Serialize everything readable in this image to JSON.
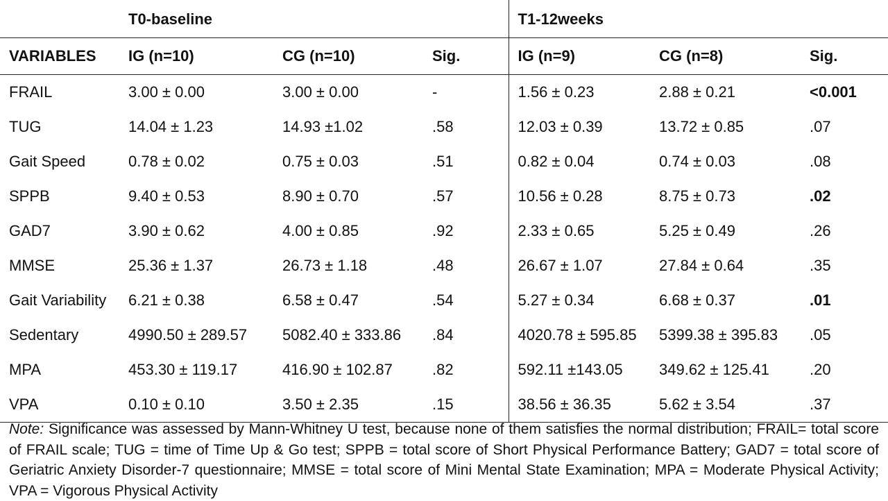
{
  "groups": {
    "t0": "T0-baseline",
    "t1": "T1-12weeks"
  },
  "headers": {
    "variables": "VARIABLES",
    "t0_ig": "IG (n=10)",
    "t0_cg": "CG (n=10)",
    "t0_sig": "Sig.",
    "t1_ig": "IG (n=9)",
    "t1_cg": "CG (n=8)",
    "t1_sig": "Sig."
  },
  "rows": [
    {
      "var": "FRAIL",
      "t0_ig": "3.00 ± 0.00",
      "t0_cg": "3.00 ± 0.00",
      "t0_sig": "-",
      "t1_ig": "1.56 ± 0.23",
      "t1_cg": "2.88 ± 0.21",
      "t1_sig": "<0.001",
      "t1_sig_bold": true
    },
    {
      "var": "TUG",
      "t0_ig": "14.04 ± 1.23",
      "t0_cg": "14.93 ±1.02",
      "t0_sig": ".58",
      "t1_ig": "12.03 ± 0.39",
      "t1_cg": "13.72 ± 0.85",
      "t1_sig": ".07",
      "t1_sig_bold": false
    },
    {
      "var": "Gait Speed",
      "t0_ig": "0.78 ± 0.02",
      "t0_cg": "0.75 ± 0.03",
      "t0_sig": ".51",
      "t1_ig": "0.82 ± 0.04",
      "t1_cg": "0.74 ± 0.03",
      "t1_sig": ".08",
      "t1_sig_bold": false
    },
    {
      "var": "SPPB",
      "t0_ig": "9.40 ± 0.53",
      "t0_cg": "8.90 ± 0.70",
      "t0_sig": ".57",
      "t1_ig": "10.56 ± 0.28",
      "t1_cg": "8.75 ± 0.73",
      "t1_sig": ".02",
      "t1_sig_bold": true
    },
    {
      "var": "GAD7",
      "t0_ig": "3.90 ± 0.62",
      "t0_cg": "4.00 ± 0.85",
      "t0_sig": ".92",
      "t1_ig": "2.33 ± 0.65",
      "t1_cg": "5.25 ± 0.49",
      "t1_sig": ".26",
      "t1_sig_bold": false
    },
    {
      "var": "MMSE",
      "t0_ig": "25.36 ± 1.37",
      "t0_cg": "26.73 ± 1.18",
      "t0_sig": ".48",
      "t1_ig": "26.67 ± 1.07",
      "t1_cg": "27.84 ± 0.64",
      "t1_sig": ".35",
      "t1_sig_bold": false
    },
    {
      "var": "Gait Variability",
      "t0_ig": "6.21 ± 0.38",
      "t0_cg": "6.58 ± 0.47",
      "t0_sig": ".54",
      "t1_ig": "5.27 ± 0.34",
      "t1_cg": "6.68 ± 0.37",
      "t1_sig": ".01",
      "t1_sig_bold": true
    },
    {
      "var": "Sedentary",
      "t0_ig": "4990.50 ± 289.57",
      "t0_cg": "5082.40 ± 333.86",
      "t0_sig": ".84",
      "t1_ig": "4020.78 ± 595.85",
      "t1_cg": "5399.38 ± 395.83",
      "t1_sig": ".05",
      "t1_sig_bold": false
    },
    {
      "var": "MPA",
      "t0_ig": "453.30 ± 119.17",
      "t0_cg": "416.90 ± 102.87",
      "t0_sig": ".82",
      "t1_ig": "592.11 ±143.05",
      "t1_cg": "349.62 ± 125.41",
      "t1_sig": ".20",
      "t1_sig_bold": false
    },
    {
      "var": "VPA",
      "t0_ig": "0.10 ± 0.10",
      "t0_cg": "3.50 ± 2.35",
      "t0_sig": ".15",
      "t1_ig": "38.56 ± 36.35",
      "t1_cg": "5.62 ± 3.54",
      "t1_sig": ".37",
      "t1_sig_bold": false
    }
  ],
  "note": {
    "label": "Note:",
    "text": " Significance was assessed by Mann-Whitney U test, because none of them satisfies the normal distribution; FRAIL= total score of FRAIL scale; TUG = time of Time Up & Go test; SPPB = total score of Short Physical Performance Battery; GAD7 = total score of Geriatric Anxiety Disorder-7 questionnaire; MMSE = total score of Mini Mental State Examination; MPA = Moderate Physical Activity; VPA = Vigorous Physical Activity"
  }
}
